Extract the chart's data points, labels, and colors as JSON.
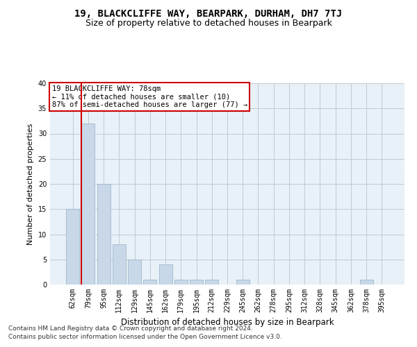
{
  "title": "19, BLACKCLIFFE WAY, BEARPARK, DURHAM, DH7 7TJ",
  "subtitle": "Size of property relative to detached houses in Bearpark",
  "xlabel": "Distribution of detached houses by size in Bearpark",
  "ylabel": "Number of detached properties",
  "categories": [
    "62sqm",
    "79sqm",
    "95sqm",
    "112sqm",
    "129sqm",
    "145sqm",
    "162sqm",
    "179sqm",
    "195sqm",
    "212sqm",
    "229sqm",
    "245sqm",
    "262sqm",
    "278sqm",
    "295sqm",
    "312sqm",
    "328sqm",
    "345sqm",
    "362sqm",
    "378sqm",
    "395sqm"
  ],
  "values": [
    15,
    32,
    20,
    8,
    5,
    1,
    4,
    1,
    1,
    1,
    0,
    1,
    0,
    0,
    0,
    0,
    0,
    0,
    0,
    1,
    0
  ],
  "bar_color": "#c8d8e8",
  "bar_edgecolor": "#a0b8cc",
  "vline_color": "#cc0000",
  "annotation_text": "19 BLACKCLIFFE WAY: 78sqm\n← 11% of detached houses are smaller (10)\n87% of semi-detached houses are larger (77) →",
  "annotation_box_color": "#ffffff",
  "annotation_box_edgecolor": "#cc0000",
  "ylim": [
    0,
    40
  ],
  "yticks": [
    0,
    5,
    10,
    15,
    20,
    25,
    30,
    35,
    40
  ],
  "grid_color": "#c0c8d0",
  "bg_color": "#e8f0f8",
  "footer_line1": "Contains HM Land Registry data © Crown copyright and database right 2024.",
  "footer_line2": "Contains public sector information licensed under the Open Government Licence v3.0.",
  "title_fontsize": 10,
  "subtitle_fontsize": 9,
  "tick_fontsize": 7,
  "ylabel_fontsize": 8,
  "xlabel_fontsize": 8.5,
  "footer_fontsize": 6.5,
  "annotation_fontsize": 7.5
}
